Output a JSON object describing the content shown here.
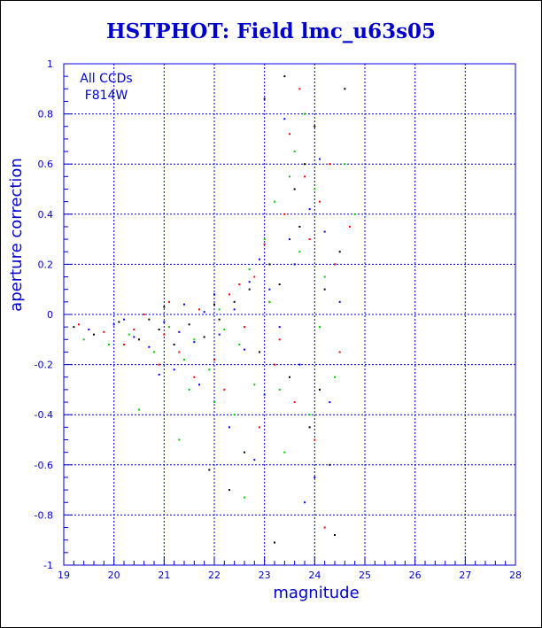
{
  "chart_data": {
    "type": "scatter",
    "title": "HSTPHOT: Field lmc_u63s05",
    "xlabel": "magnitude",
    "ylabel": "aperture correction",
    "xlim": [
      19,
      28
    ],
    "ylim": [
      -1,
      1
    ],
    "x_ticks": [
      19,
      20,
      21,
      22,
      23,
      24,
      25,
      26,
      27,
      28
    ],
    "y_ticks": [
      -1,
      -0.8,
      -0.6,
      -0.4,
      -0.2,
      0,
      0.2,
      0.4,
      0.6,
      0.8,
      1
    ],
    "grid": true,
    "annotations": [
      "All CCDs",
      "F814W"
    ],
    "series_colors": [
      "#000000",
      "#ff0000",
      "#00cc00",
      "#0000ff"
    ],
    "series": [
      {
        "color": "#000000",
        "points": [
          [
            19.2,
            -0.05
          ],
          [
            19.6,
            -0.08
          ],
          [
            20.1,
            -0.03
          ],
          [
            20.5,
            -0.1
          ],
          [
            20.9,
            -0.06
          ],
          [
            21.2,
            -0.12
          ],
          [
            21.5,
            -0.04
          ],
          [
            21.8,
            -0.09
          ],
          [
            22.1,
            -0.02
          ],
          [
            22.4,
            0.05
          ],
          [
            22.7,
            0.1
          ],
          [
            22.9,
            -0.15
          ],
          [
            23.1,
            0.2
          ],
          [
            23.3,
            0.12
          ],
          [
            23.5,
            -0.25
          ],
          [
            23.7,
            0.35
          ],
          [
            23.8,
            0.6
          ],
          [
            23.9,
            -0.45
          ],
          [
            24.0,
            0.75
          ],
          [
            24.1,
            -0.3
          ],
          [
            24.2,
            0.1
          ],
          [
            24.3,
            -0.6
          ],
          [
            24.5,
            0.25
          ],
          [
            23.0,
            0.86
          ],
          [
            23.4,
            0.95
          ],
          [
            22.6,
            -0.55
          ],
          [
            21.9,
            -0.62
          ],
          [
            24.4,
            -0.88
          ],
          [
            23.2,
            -0.91
          ],
          [
            22.3,
            -0.7
          ],
          [
            20.7,
            -0.02
          ],
          [
            21.0,
            0.03
          ],
          [
            22.0,
            0.04
          ],
          [
            23.6,
            0.5
          ],
          [
            24.6,
            0.9
          ]
        ]
      },
      {
        "color": "#ff0000",
        "points": [
          [
            19.3,
            -0.04
          ],
          [
            19.8,
            -0.07
          ],
          [
            20.2,
            -0.12
          ],
          [
            20.6,
            0.0
          ],
          [
            21.0,
            -0.08
          ],
          [
            21.3,
            -0.15
          ],
          [
            21.7,
            0.02
          ],
          [
            22.0,
            -0.18
          ],
          [
            22.3,
            0.08
          ],
          [
            22.6,
            -0.05
          ],
          [
            22.8,
            0.15
          ],
          [
            23.0,
            0.28
          ],
          [
            23.2,
            -0.2
          ],
          [
            23.4,
            0.4
          ],
          [
            23.6,
            -0.35
          ],
          [
            23.8,
            0.55
          ],
          [
            23.9,
            0.3
          ],
          [
            24.0,
            -0.5
          ],
          [
            24.1,
            0.45
          ],
          [
            24.3,
            0.6
          ],
          [
            24.5,
            -0.15
          ],
          [
            24.7,
            0.35
          ],
          [
            21.6,
            -0.25
          ],
          [
            22.2,
            -0.3
          ],
          [
            22.9,
            -0.45
          ],
          [
            23.5,
            0.72
          ],
          [
            24.2,
            -0.85
          ],
          [
            23.7,
            0.9
          ],
          [
            20.4,
            -0.06
          ],
          [
            21.1,
            0.05
          ],
          [
            22.5,
            0.12
          ],
          [
            23.3,
            -0.1
          ],
          [
            24.4,
            0.2
          ],
          [
            20.9,
            -0.2
          ],
          [
            23.1,
            0.05
          ]
        ]
      },
      {
        "color": "#00cc00",
        "points": [
          [
            19.4,
            -0.1
          ],
          [
            19.9,
            -0.12
          ],
          [
            20.3,
            -0.08
          ],
          [
            20.8,
            -0.15
          ],
          [
            21.1,
            -0.05
          ],
          [
            21.4,
            -0.18
          ],
          [
            21.6,
            -0.1
          ],
          [
            21.9,
            -0.22
          ],
          [
            22.2,
            -0.06
          ],
          [
            22.5,
            -0.12
          ],
          [
            22.7,
            0.18
          ],
          [
            23.0,
            0.3
          ],
          [
            23.2,
            0.45
          ],
          [
            23.3,
            -0.3
          ],
          [
            23.5,
            0.55
          ],
          [
            23.6,
            0.65
          ],
          [
            23.8,
            0.8
          ],
          [
            23.9,
            -0.4
          ],
          [
            24.0,
            0.5
          ],
          [
            24.2,
            0.15
          ],
          [
            24.4,
            -0.25
          ],
          [
            24.6,
            0.6
          ],
          [
            24.8,
            0.4
          ],
          [
            21.5,
            -0.3
          ],
          [
            22.0,
            -0.35
          ],
          [
            22.4,
            -0.4
          ],
          [
            22.8,
            -0.28
          ],
          [
            23.4,
            -0.55
          ],
          [
            21.3,
            -0.5
          ],
          [
            20.5,
            -0.38
          ],
          [
            23.1,
            0.05
          ],
          [
            22.1,
            0.02
          ],
          [
            23.7,
            0.25
          ],
          [
            24.1,
            -0.05
          ],
          [
            22.6,
            -0.73
          ]
        ]
      },
      {
        "color": "#0000ff",
        "points": [
          [
            19.5,
            -0.06
          ],
          [
            20.0,
            -0.04
          ],
          [
            20.4,
            -0.09
          ],
          [
            20.7,
            -0.13
          ],
          [
            21.0,
            -0.03
          ],
          [
            21.3,
            -0.07
          ],
          [
            21.6,
            -0.11
          ],
          [
            21.8,
            0.01
          ],
          [
            22.1,
            -0.08
          ],
          [
            22.4,
            0.02
          ],
          [
            22.6,
            -0.14
          ],
          [
            22.9,
            0.22
          ],
          [
            23.1,
            0.1
          ],
          [
            23.3,
            -0.05
          ],
          [
            23.5,
            0.3
          ],
          [
            23.7,
            -0.2
          ],
          [
            23.9,
            0.42
          ],
          [
            24.1,
            0.62
          ],
          [
            24.3,
            -0.35
          ],
          [
            24.5,
            0.05
          ],
          [
            21.2,
            -0.22
          ],
          [
            21.7,
            -0.28
          ],
          [
            22.3,
            -0.45
          ],
          [
            23.0,
            -0.32
          ],
          [
            23.4,
            0.78
          ],
          [
            24.0,
            -0.65
          ],
          [
            20.9,
            -0.24
          ],
          [
            22.0,
            0.08
          ],
          [
            22.7,
            0.13
          ],
          [
            23.6,
            0.2
          ],
          [
            24.2,
            0.33
          ],
          [
            21.4,
            0.04
          ],
          [
            22.8,
            -0.58
          ],
          [
            20.2,
            -0.02
          ],
          [
            23.8,
            -0.75
          ]
        ]
      }
    ]
  }
}
